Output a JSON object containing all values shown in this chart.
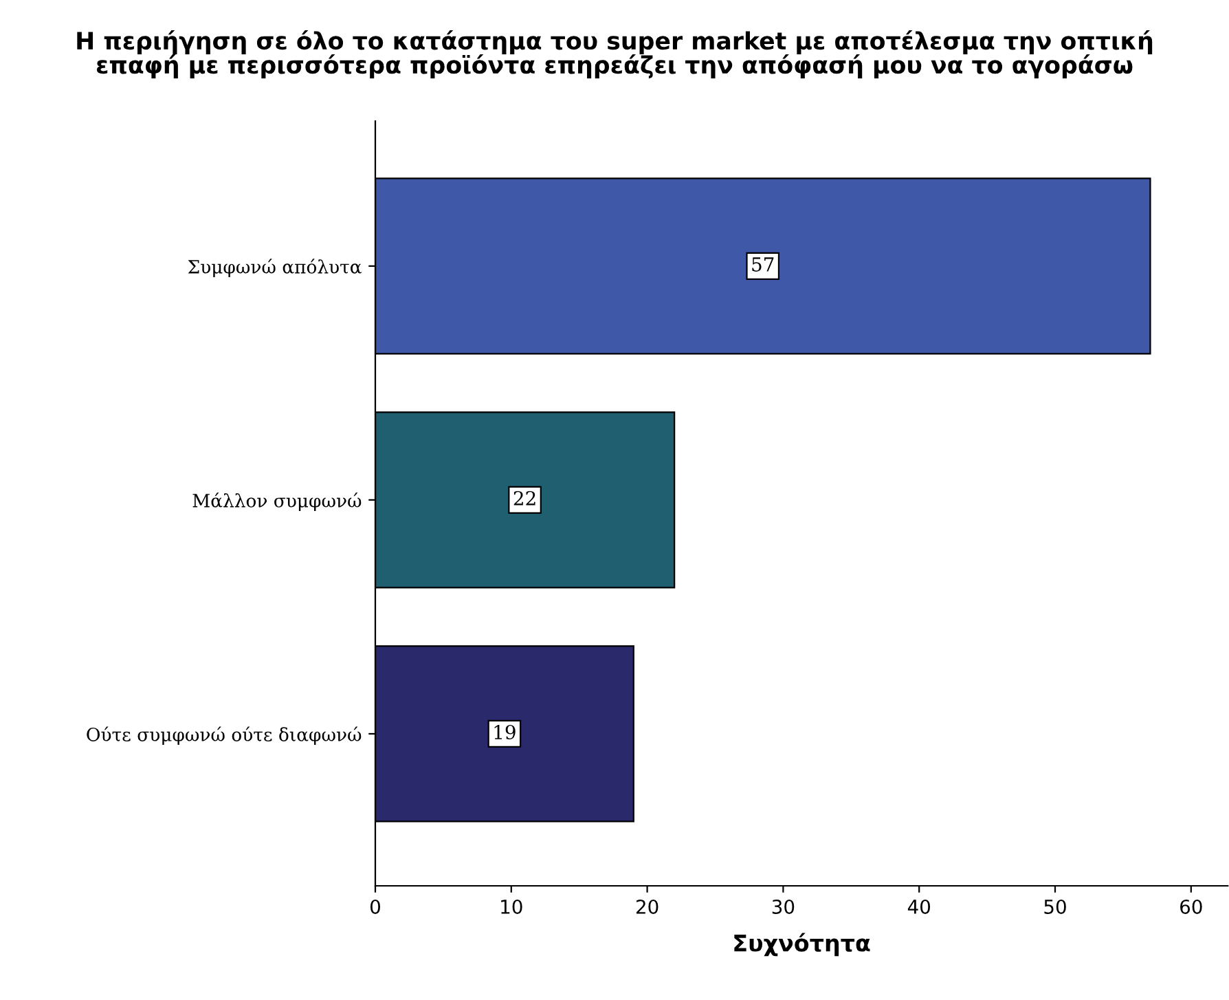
{
  "chart_data": {
    "type": "bar",
    "orientation": "horizontal",
    "title": "Η περιήγηση σε όλο το κατάστημα του super market με αποτέλεσμα την οπτική\nεπαφή με περισσότερα προϊόντα επηρεάζει την απόφασή μου να το αγοράσω",
    "xlabel": "Συχνότητα",
    "categories": [
      "Συμφωνώ απόλυτα",
      "Μάλλον συμφωνώ",
      "Ούτε συμφωνώ ούτε διαφωνώ"
    ],
    "values": [
      57,
      22,
      19
    ],
    "colors": [
      "#3f58a8",
      "#1f5f70",
      "#29296c"
    ],
    "xlim": [
      0,
      62.7
    ],
    "xticks": [
      0,
      10,
      20,
      30,
      40,
      50,
      60
    ],
    "data_labels": true,
    "grid": false,
    "legend": false
  }
}
